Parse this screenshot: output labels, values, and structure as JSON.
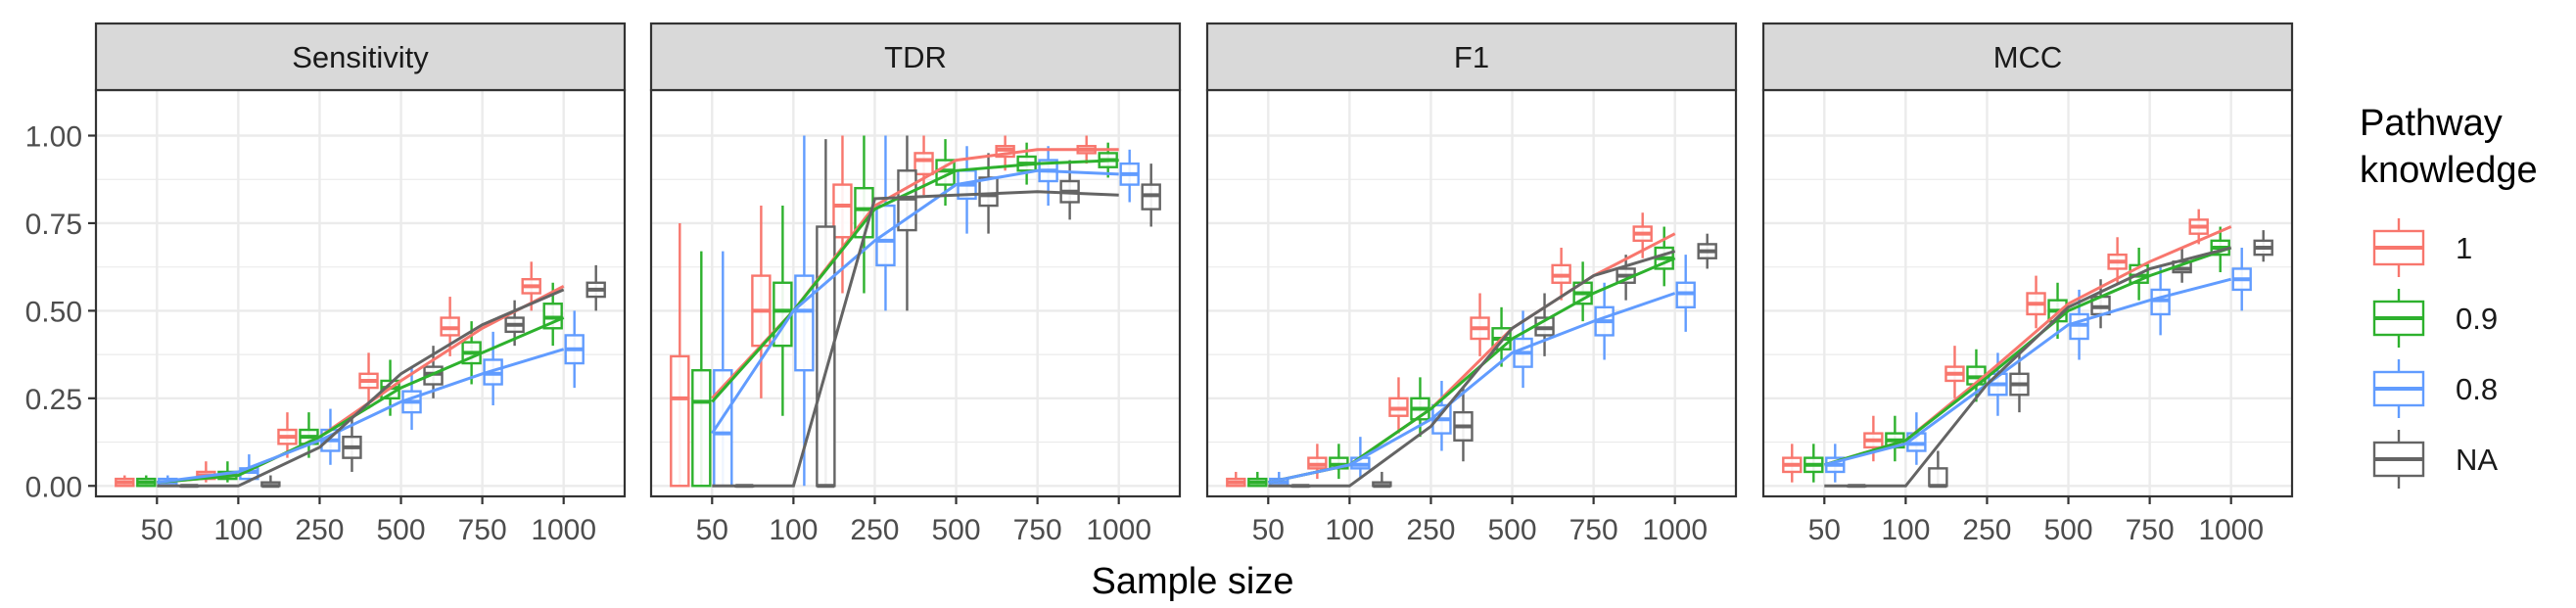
{
  "chart_data": {
    "type": "box-line",
    "xlabel": "Sample size",
    "ylabel": "",
    "categories": [
      "50",
      "100",
      "250",
      "500",
      "750",
      "1000"
    ],
    "yticks": [
      "0.00",
      "0.25",
      "0.50",
      "0.75",
      "1.00"
    ],
    "ylim": [
      -0.03,
      1.13
    ],
    "grid": true,
    "legend": {
      "title": "Pathway knowledge",
      "title_lines": [
        "Pathway",
        "knowledge"
      ],
      "position": "right",
      "entries": [
        "1",
        "0.9",
        "0.8",
        "NA"
      ]
    },
    "colors": {
      "1": "#F8766D",
      "0.9": "#2DB12D",
      "0.8": "#619CFF",
      "NA": "#646464",
      "strip_bg": "#d9d9d9",
      "grid": "#ebebeb",
      "border": "#333333"
    },
    "panels": [
      {
        "title": "Sensitivity",
        "lines": {
          "1": [
            0.01,
            0.03,
            0.14,
            0.3,
            0.45,
            0.57
          ],
          "0.9": [
            0.01,
            0.03,
            0.14,
            0.28,
            0.38,
            0.48
          ],
          "0.8": [
            0.01,
            0.04,
            0.13,
            0.24,
            0.32,
            0.39
          ],
          "NA": [
            0.0,
            0.0,
            0.11,
            0.32,
            0.46,
            0.56
          ]
        },
        "boxes": {
          "1": [
            [
              0,
              0,
              0.01,
              0.02,
              0.03
            ],
            [
              0.01,
              0.02,
              0.03,
              0.04,
              0.07
            ],
            [
              0.08,
              0.12,
              0.14,
              0.16,
              0.21
            ],
            [
              0.22,
              0.28,
              0.3,
              0.32,
              0.38
            ],
            [
              0.37,
              0.43,
              0.45,
              0.48,
              0.54
            ],
            [
              0.5,
              0.55,
              0.57,
              0.59,
              0.64
            ]
          ],
          "0.9": [
            [
              0,
              0,
              0.01,
              0.02,
              0.03
            ],
            [
              0.01,
              0.02,
              0.03,
              0.04,
              0.07
            ],
            [
              0.08,
              0.12,
              0.14,
              0.16,
              0.21
            ],
            [
              0.2,
              0.25,
              0.28,
              0.3,
              0.36
            ],
            [
              0.29,
              0.35,
              0.38,
              0.41,
              0.47
            ],
            [
              0.4,
              0.45,
              0.48,
              0.52,
              0.58
            ]
          ],
          "0.8": [
            [
              0,
              0,
              0.01,
              0.02,
              0.03
            ],
            [
              0.01,
              0.02,
              0.04,
              0.05,
              0.09
            ],
            [
              0.06,
              0.1,
              0.13,
              0.16,
              0.22
            ],
            [
              0.16,
              0.21,
              0.24,
              0.27,
              0.34
            ],
            [
              0.23,
              0.29,
              0.32,
              0.36,
              0.44
            ],
            [
              0.28,
              0.35,
              0.39,
              0.43,
              0.5
            ]
          ],
          "NA": [
            [
              0,
              0,
              0,
              0,
              0
            ],
            [
              0,
              0,
              0,
              0.01,
              0.03
            ],
            [
              0.04,
              0.08,
              0.11,
              0.14,
              0.2
            ],
            [
              0.25,
              0.29,
              0.32,
              0.34,
              0.4
            ],
            [
              0.4,
              0.44,
              0.46,
              0.48,
              0.53
            ],
            [
              0.5,
              0.54,
              0.56,
              0.58,
              0.63
            ]
          ]
        }
      },
      {
        "title": "TDR",
        "lines": {
          "1": [
            0.25,
            0.5,
            0.8,
            0.93,
            0.96,
            0.96
          ],
          "0.9": [
            0.24,
            0.5,
            0.79,
            0.9,
            0.92,
            0.93
          ],
          "0.8": [
            0.15,
            0.5,
            0.7,
            0.86,
            0.9,
            0.89
          ],
          "NA": [
            0.0,
            0.0,
            0.82,
            0.83,
            0.84,
            0.83
          ]
        },
        "boxes": {
          "1": [
            [
              0,
              0,
              0.25,
              0.37,
              0.75
            ],
            [
              0.25,
              0.4,
              0.5,
              0.6,
              0.8
            ],
            [
              0.55,
              0.71,
              0.8,
              0.86,
              1.0
            ],
            [
              0.83,
              0.89,
              0.93,
              0.95,
              1.0
            ],
            [
              0.9,
              0.94,
              0.96,
              0.97,
              1.0
            ],
            [
              0.92,
              0.95,
              0.96,
              0.97,
              1.0
            ]
          ],
          "0.9": [
            [
              0,
              0,
              0.24,
              0.33,
              0.67
            ],
            [
              0.2,
              0.4,
              0.5,
              0.58,
              0.8
            ],
            [
              0.55,
              0.71,
              0.79,
              0.85,
              1.0
            ],
            [
              0.8,
              0.86,
              0.9,
              0.93,
              0.99
            ],
            [
              0.86,
              0.9,
              0.92,
              0.94,
              0.98
            ],
            [
              0.88,
              0.91,
              0.93,
              0.95,
              0.98
            ]
          ],
          "0.8": [
            [
              0,
              0,
              0.15,
              0.33,
              0.67
            ],
            [
              0,
              0.33,
              0.5,
              0.6,
              1.0
            ],
            [
              0.5,
              0.63,
              0.7,
              0.8,
              1.0
            ],
            [
              0.72,
              0.82,
              0.86,
              0.9,
              0.97
            ],
            [
              0.8,
              0.87,
              0.9,
              0.93,
              0.97
            ],
            [
              0.81,
              0.86,
              0.89,
              0.92,
              0.96
            ]
          ],
          "NA": [
            [
              0,
              0,
              0,
              0,
              0
            ],
            [
              0,
              0,
              0,
              0.74,
              0.99
            ],
            [
              0.5,
              0.73,
              0.82,
              0.9,
              1.0
            ],
            [
              0.72,
              0.8,
              0.83,
              0.88,
              0.95
            ],
            [
              0.76,
              0.81,
              0.84,
              0.87,
              0.93
            ],
            [
              0.74,
              0.79,
              0.83,
              0.86,
              0.92
            ]
          ]
        }
      },
      {
        "title": "F1",
        "lines": {
          "1": [
            0.01,
            0.06,
            0.22,
            0.45,
            0.6,
            0.72
          ],
          "0.9": [
            0.01,
            0.06,
            0.22,
            0.42,
            0.55,
            0.65
          ],
          "0.8": [
            0.01,
            0.06,
            0.19,
            0.38,
            0.47,
            0.55
          ],
          "NA": [
            0.0,
            0.0,
            0.17,
            0.45,
            0.6,
            0.67
          ]
        },
        "boxes": {
          "1": [
            [
              0,
              0,
              0.01,
              0.02,
              0.04
            ],
            [
              0.02,
              0.05,
              0.06,
              0.08,
              0.12
            ],
            [
              0.15,
              0.2,
              0.22,
              0.25,
              0.31
            ],
            [
              0.37,
              0.42,
              0.45,
              0.48,
              0.55
            ],
            [
              0.53,
              0.58,
              0.6,
              0.63,
              0.68
            ],
            [
              0.65,
              0.7,
              0.72,
              0.74,
              0.78
            ]
          ],
          "0.9": [
            [
              0,
              0,
              0.01,
              0.02,
              0.04
            ],
            [
              0.02,
              0.05,
              0.06,
              0.08,
              0.12
            ],
            [
              0.14,
              0.19,
              0.22,
              0.25,
              0.31
            ],
            [
              0.34,
              0.39,
              0.42,
              0.45,
              0.51
            ],
            [
              0.47,
              0.52,
              0.55,
              0.58,
              0.64
            ],
            [
              0.57,
              0.62,
              0.65,
              0.68,
              0.74
            ]
          ],
          "0.8": [
            [
              0,
              0,
              0.01,
              0.02,
              0.04
            ],
            [
              0.02,
              0.05,
              0.06,
              0.08,
              0.14
            ],
            [
              0.1,
              0.15,
              0.19,
              0.23,
              0.3
            ],
            [
              0.28,
              0.34,
              0.38,
              0.42,
              0.5
            ],
            [
              0.36,
              0.43,
              0.47,
              0.51,
              0.58
            ],
            [
              0.44,
              0.51,
              0.55,
              0.58,
              0.66
            ]
          ],
          "NA": [
            [
              0,
              0,
              0,
              0,
              0
            ],
            [
              0,
              0,
              0,
              0.01,
              0.04
            ],
            [
              0.07,
              0.13,
              0.17,
              0.21,
              0.28
            ],
            [
              0.37,
              0.43,
              0.45,
              0.48,
              0.55
            ],
            [
              0.53,
              0.58,
              0.6,
              0.62,
              0.66
            ],
            [
              0.62,
              0.65,
              0.67,
              0.69,
              0.72
            ]
          ]
        }
      },
      {
        "title": "MCC",
        "lines": {
          "1": [
            0.06,
            0.13,
            0.32,
            0.52,
            0.64,
            0.74
          ],
          "0.9": [
            0.06,
            0.13,
            0.31,
            0.5,
            0.6,
            0.68
          ],
          "0.8": [
            0.06,
            0.12,
            0.29,
            0.46,
            0.53,
            0.59
          ],
          "NA": [
            0.0,
            0.0,
            0.29,
            0.51,
            0.62,
            0.68
          ]
        },
        "boxes": {
          "1": [
            [
              0.01,
              0.04,
              0.06,
              0.08,
              0.12
            ],
            [
              0.07,
              0.11,
              0.13,
              0.15,
              0.2
            ],
            [
              0.25,
              0.3,
              0.32,
              0.34,
              0.4
            ],
            [
              0.45,
              0.49,
              0.52,
              0.55,
              0.6
            ],
            [
              0.58,
              0.62,
              0.64,
              0.66,
              0.71
            ],
            [
              0.69,
              0.72,
              0.74,
              0.76,
              0.79
            ]
          ],
          "0.9": [
            [
              0.01,
              0.04,
              0.06,
              0.08,
              0.12
            ],
            [
              0.07,
              0.11,
              0.13,
              0.15,
              0.2
            ],
            [
              0.24,
              0.29,
              0.31,
              0.34,
              0.39
            ],
            [
              0.42,
              0.47,
              0.5,
              0.53,
              0.58
            ],
            [
              0.53,
              0.58,
              0.6,
              0.63,
              0.68
            ],
            [
              0.61,
              0.66,
              0.68,
              0.7,
              0.74
            ]
          ],
          "0.8": [
            [
              0.01,
              0.04,
              0.06,
              0.08,
              0.12
            ],
            [
              0.06,
              0.1,
              0.12,
              0.15,
              0.21
            ],
            [
              0.2,
              0.26,
              0.29,
              0.32,
              0.38
            ],
            [
              0.36,
              0.42,
              0.46,
              0.49,
              0.56
            ],
            [
              0.43,
              0.49,
              0.53,
              0.56,
              0.63
            ],
            [
              0.5,
              0.56,
              0.59,
              0.62,
              0.68
            ]
          ],
          "NA": [
            [
              0,
              0,
              0,
              0,
              0
            ],
            [
              0,
              0,
              0,
              0.05,
              0.1
            ],
            [
              0.21,
              0.26,
              0.29,
              0.32,
              0.38
            ],
            [
              0.45,
              0.49,
              0.51,
              0.54,
              0.59
            ],
            [
              0.58,
              0.61,
              0.62,
              0.64,
              0.68
            ],
            [
              0.64,
              0.66,
              0.68,
              0.7,
              0.73
            ]
          ]
        }
      }
    ]
  }
}
